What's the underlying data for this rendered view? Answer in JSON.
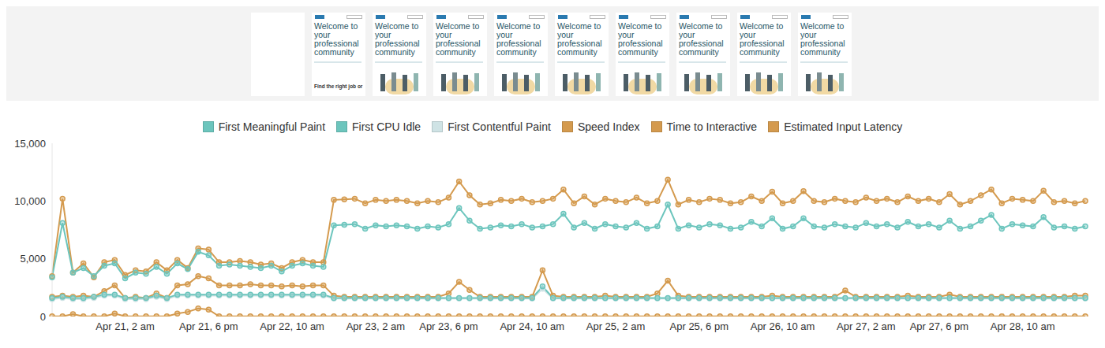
{
  "filmstrip": {
    "frames": [
      null,
      {
        "title": "Welcome to your professional community",
        "text": "Find the right job or"
      },
      {
        "title": "Welcome to your professional community"
      },
      {
        "title": "Welcome to your professional community"
      },
      {
        "title": "Welcome to your professional community"
      },
      {
        "title": "Welcome to your professional community"
      },
      {
        "title": "Welcome to your professional community"
      },
      {
        "title": "Welcome to your professional community"
      },
      {
        "title": "Welcome to your professional community"
      },
      {
        "title": "Welcome to your professional community"
      }
    ]
  },
  "chart_data": {
    "type": "line",
    "legend": "top",
    "grid": false,
    "marker": "circle",
    "categories": [
      null,
      null,
      null,
      null,
      null,
      null,
      null,
      "Apr 21, 2 am",
      null,
      null,
      null,
      null,
      null,
      null,
      null,
      "Apr 21, 6 pm",
      null,
      null,
      null,
      null,
      null,
      null,
      null,
      "Apr 22, 10 am",
      null,
      null,
      null,
      null,
      null,
      null,
      null,
      "Apr 23, 2 am",
      null,
      null,
      null,
      null,
      null,
      null,
      "Apr 23, 6 pm",
      null,
      null,
      null,
      null,
      null,
      null,
      null,
      "Apr 24, 10 am",
      null,
      null,
      null,
      null,
      null,
      null,
      null,
      "Apr 25, 2 am",
      null,
      null,
      null,
      null,
      null,
      null,
      null,
      "Apr 25, 6 pm",
      null,
      null,
      null,
      null,
      null,
      null,
      null,
      "Apr 26, 10 am",
      null,
      null,
      null,
      null,
      null,
      null,
      null,
      "Apr 27, 2 am",
      null,
      null,
      null,
      null,
      null,
      null,
      "Apr 27, 6 pm",
      null,
      null,
      null,
      null,
      null,
      null,
      null,
      "Apr 28, 10 am",
      null,
      null,
      null,
      null,
      null,
      null
    ],
    "ylim": [
      0,
      15000
    ],
    "yticks": [
      0,
      {
        "value": 5000,
        "label": "5,000"
      },
      {
        "value": 10000,
        "label": "10,000"
      },
      {
        "value": 15000,
        "label": "15,000"
      }
    ],
    "series": [
      {
        "name": "First Meaningful Paint",
        "color": "#6cc5bd",
        "values": [
          1600,
          1700,
          1600,
          1600,
          1700,
          1900,
          1900,
          1600,
          1600,
          1600,
          1800,
          1600,
          1900,
          1900,
          1900,
          1900,
          1900,
          1900,
          1900,
          1900,
          1900,
          1900,
          1900,
          1900,
          1900,
          1900,
          1900,
          1600,
          1600,
          1600,
          1600,
          1600,
          1600,
          1600,
          1600,
          1600,
          1600,
          1600,
          1600,
          1600,
          1600,
          1600,
          1600,
          1600,
          1600,
          1600,
          1600,
          2600,
          1600,
          1600,
          1600,
          1600,
          1600,
          1600,
          1600,
          1600,
          1600,
          1600,
          1600,
          1600,
          1600,
          1600,
          1600,
          1600,
          1600,
          1600,
          1600,
          1600,
          1600,
          1600,
          1600,
          1600,
          1600,
          1600,
          1600,
          1600,
          1600,
          1600,
          1600,
          1600,
          1600,
          1600,
          1600,
          1600,
          1600,
          1600,
          1600,
          1600,
          1600,
          1600,
          1600,
          1600,
          1600,
          1600,
          1600,
          1600,
          1600,
          1600,
          1600,
          1600
        ]
      },
      {
        "name": "First CPU Idle",
        "color": "#6cc5bd",
        "values": [
          3400,
          8100,
          3800,
          4200,
          3500,
          4400,
          4600,
          3300,
          3800,
          3700,
          4300,
          3700,
          4600,
          4100,
          5600,
          5300,
          4400,
          4500,
          4400,
          4300,
          4200,
          4400,
          3900,
          4400,
          4600,
          4400,
          4300,
          7900,
          7950,
          8000,
          7600,
          7900,
          7800,
          7900,
          7800,
          7600,
          7800,
          7700,
          8000,
          9400,
          8300,
          7600,
          7700,
          7900,
          7800,
          8000,
          7700,
          7800,
          8000,
          8900,
          7700,
          8100,
          7600,
          8000,
          7800,
          7700,
          8100,
          7600,
          7800,
          9700,
          7600,
          7900,
          7700,
          8000,
          7900,
          7600,
          7700,
          8200,
          7800,
          8500,
          7600,
          7800,
          8500,
          7800,
          7700,
          8000,
          7800,
          7700,
          8100,
          7800,
          8000,
          7700,
          8200,
          7800,
          8000,
          7700,
          8300,
          7600,
          7800,
          8300,
          8800,
          7600,
          8000,
          7900,
          7800,
          8600,
          7700,
          7800,
          7600,
          7800
        ]
      },
      {
        "name": "First Contentful Paint",
        "color": "#cfe3e5",
        "values": [
          1500,
          1600,
          1500,
          1500,
          1600,
          1800,
          1800,
          1500,
          1500,
          1500,
          1700,
          1500,
          1800,
          1800,
          1800,
          1800,
          1800,
          1800,
          1800,
          1800,
          1800,
          1800,
          1800,
          1800,
          1800,
          1800,
          1800,
          1550,
          1550,
          1550,
          1550,
          1550,
          1550,
          1550,
          1550,
          1550,
          1550,
          1550,
          1550,
          1550,
          1550,
          1550,
          1550,
          1550,
          1550,
          1550,
          1550,
          2400,
          1550,
          1550,
          1550,
          1550,
          1550,
          1550,
          1550,
          1550,
          1550,
          1550,
          1550,
          1550,
          1550,
          1550,
          1550,
          1550,
          1550,
          1550,
          1550,
          1550,
          1550,
          1550,
          1550,
          1550,
          1550,
          1550,
          1550,
          1550,
          1550,
          1550,
          1550,
          1550,
          1550,
          1550,
          1550,
          1550,
          1550,
          1550,
          1550,
          1550,
          1550,
          1550,
          1550,
          1550,
          1550,
          1550,
          1550,
          1550,
          1550,
          1550,
          1550,
          1550
        ]
      },
      {
        "name": "Speed Index",
        "color": "#d49a4e",
        "values": [
          1700,
          1800,
          1700,
          1800,
          1700,
          2200,
          2700,
          1600,
          1700,
          1600,
          2000,
          1600,
          2700,
          2800,
          3500,
          3300,
          2700,
          2700,
          2700,
          2800,
          2700,
          2700,
          2600,
          2700,
          2600,
          2700,
          2700,
          1800,
          1700,
          1700,
          1700,
          1700,
          1700,
          1700,
          1700,
          1700,
          1700,
          1700,
          2000,
          3000,
          2300,
          1700,
          1700,
          1700,
          1700,
          1700,
          1700,
          4000,
          1800,
          1700,
          1700,
          1700,
          1700,
          1800,
          1700,
          1700,
          1700,
          1700,
          2000,
          3100,
          1800,
          1700,
          1700,
          1700,
          1700,
          1700,
          1700,
          1700,
          1700,
          1800,
          1700,
          1700,
          1700,
          1700,
          1700,
          1700,
          2250,
          1700,
          1700,
          1700,
          1700,
          1700,
          1800,
          1700,
          1700,
          1700,
          1900,
          1700,
          1700,
          1700,
          1700,
          1700,
          1700,
          1700,
          1700,
          1700,
          1700,
          1700,
          1800,
          1800
        ]
      },
      {
        "name": "Time to Interactive",
        "color": "#d49a4e",
        "values": [
          3500,
          10200,
          3800,
          4600,
          3400,
          4700,
          4900,
          3600,
          4000,
          3900,
          4700,
          4000,
          4900,
          4200,
          5900,
          5800,
          4700,
          4700,
          4800,
          4700,
          4500,
          4600,
          4200,
          4700,
          4900,
          4700,
          4700,
          10100,
          10150,
          10200,
          9800,
          10100,
          10000,
          10100,
          10000,
          9800,
          10000,
          9900,
          10300,
          11700,
          10500,
          9700,
          9800,
          10100,
          10000,
          10200,
          9900,
          10000,
          10200,
          11000,
          9800,
          10400,
          9700,
          10200,
          10000,
          9900,
          10300,
          9800,
          10000,
          11850,
          9700,
          10100,
          9900,
          10200,
          10100,
          9800,
          9900,
          10400,
          10000,
          10800,
          9800,
          10000,
          10850,
          10000,
          9900,
          10200,
          10000,
          9900,
          10300,
          10000,
          10200,
          9900,
          10400,
          10000,
          10200,
          9900,
          10600,
          9700,
          10000,
          10500,
          11000,
          9800,
          10200,
          10100,
          10000,
          10900,
          9900,
          10000,
          9800,
          10000
        ]
      },
      {
        "name": "Estimated Input Latency",
        "color": "#d49a4e",
        "values": [
          16,
          16,
          200,
          16,
          16,
          16,
          250,
          16,
          16,
          16,
          16,
          16,
          250,
          400,
          700,
          600,
          16,
          16,
          16,
          16,
          16,
          16,
          16,
          16,
          16,
          16,
          16,
          16,
          16,
          16,
          16,
          16,
          16,
          16,
          16,
          16,
          16,
          16,
          16,
          16,
          16,
          16,
          16,
          16,
          16,
          16,
          16,
          16,
          16,
          16,
          16,
          16,
          16,
          16,
          16,
          16,
          16,
          16,
          16,
          16,
          16,
          16,
          16,
          16,
          16,
          16,
          16,
          16,
          16,
          16,
          16,
          16,
          16,
          16,
          16,
          16,
          16,
          16,
          16,
          16,
          16,
          16,
          16,
          16,
          16,
          16,
          16,
          16,
          16,
          16,
          16,
          16,
          16,
          16,
          16,
          16,
          16,
          16,
          16,
          16
        ]
      }
    ]
  }
}
